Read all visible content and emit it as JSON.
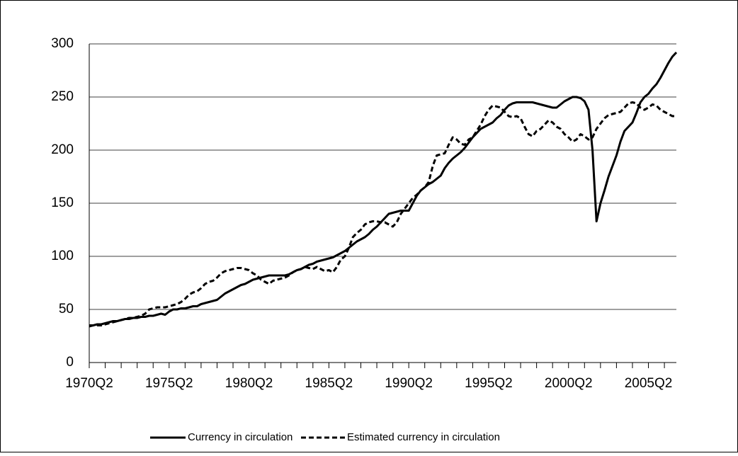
{
  "chart_data": {
    "type": "line",
    "categories": [
      "1970Q2",
      null,
      null,
      null,
      null,
      null,
      null,
      null,
      null,
      null,
      null,
      null,
      null,
      null,
      null,
      null,
      null,
      null,
      null,
      null,
      "1975Q2",
      null,
      null,
      null,
      null,
      null,
      null,
      null,
      null,
      null,
      null,
      null,
      null,
      null,
      null,
      null,
      null,
      null,
      null,
      null,
      "1980Q2",
      null,
      null,
      null,
      null,
      null,
      null,
      null,
      null,
      null,
      null,
      null,
      null,
      null,
      null,
      null,
      null,
      null,
      null,
      null,
      "1985Q2",
      null,
      null,
      null,
      null,
      null,
      null,
      null,
      null,
      null,
      null,
      null,
      null,
      null,
      null,
      null,
      null,
      null,
      null,
      null,
      "1990Q2",
      null,
      null,
      null,
      null,
      null,
      null,
      null,
      null,
      null,
      null,
      null,
      null,
      null,
      null,
      null,
      null,
      null,
      null,
      null,
      "1995Q2",
      null,
      null,
      null,
      null,
      null,
      null,
      null,
      null,
      null,
      null,
      null,
      null,
      null,
      null,
      null,
      null,
      null,
      null,
      null,
      "2000Q2",
      null,
      null,
      null,
      null,
      null,
      null,
      null,
      null,
      null,
      null,
      null,
      null,
      null,
      null,
      null,
      null,
      null,
      null,
      null,
      "2005Q2",
      null,
      null,
      null,
      null,
      null,
      null,
      null
    ],
    "series": [
      {
        "name": "Currency in circulation",
        "color": "#000000",
        "dash": "solid",
        "values": [
          35,
          35,
          36,
          36,
          37,
          38,
          39,
          39,
          40,
          41,
          41,
          42,
          42,
          43,
          43,
          44,
          44,
          45,
          46,
          45,
          48,
          50,
          50,
          51,
          51,
          52,
          53,
          53,
          55,
          56,
          57,
          58,
          59,
          62,
          65,
          67,
          69,
          71,
          73,
          74,
          76,
          78,
          79,
          80,
          81,
          82,
          82,
          82,
          82,
          82,
          83,
          85,
          87,
          88,
          90,
          92,
          93,
          95,
          96,
          97,
          98,
          99,
          101,
          103,
          105,
          108,
          111,
          114,
          116,
          118,
          121,
          125,
          128,
          132,
          136,
          140,
          141,
          142,
          143,
          143,
          143,
          150,
          157,
          162,
          165,
          168,
          170,
          173,
          176,
          183,
          188,
          192,
          195,
          198,
          202,
          207,
          212,
          216,
          220,
          222,
          224,
          226,
          230,
          233,
          238,
          242,
          244,
          245,
          245,
          245,
          245,
          245,
          244,
          243,
          242,
          241,
          240,
          240,
          243,
          246,
          248,
          250,
          250,
          249,
          246,
          238,
          200,
          133,
          150,
          162,
          175,
          185,
          195,
          208,
          218,
          222,
          226,
          235,
          245,
          250,
          253,
          258,
          262,
          268,
          275,
          282,
          288,
          292
        ]
      },
      {
        "name": "Estimated currency in circulation",
        "color": "#000000",
        "dash": "dashed",
        "values": [
          34,
          35,
          35,
          35,
          36,
          37,
          38,
          39,
          40,
          41,
          42,
          42,
          43,
          44,
          46,
          50,
          51,
          52,
          52,
          52,
          53,
          54,
          55,
          57,
          60,
          64,
          66,
          67,
          70,
          74,
          76,
          77,
          80,
          84,
          86,
          87,
          88,
          89,
          89,
          88,
          87,
          84,
          82,
          78,
          76,
          74,
          77,
          78,
          79,
          80,
          82,
          85,
          87,
          88,
          90,
          89,
          88,
          90,
          88,
          86,
          87,
          85,
          90,
          97,
          100,
          108,
          118,
          122,
          125,
          130,
          132,
          133,
          133,
          132,
          132,
          130,
          128,
          132,
          140,
          145,
          150,
          155,
          158,
          162,
          165,
          170,
          185,
          195,
          196,
          197,
          205,
          212,
          210,
          206,
          205,
          210,
          212,
          218,
          224,
          232,
          238,
          242,
          241,
          240,
          236,
          232,
          231,
          232,
          230,
          222,
          215,
          213,
          218,
          220,
          224,
          228,
          226,
          222,
          220,
          215,
          212,
          208,
          210,
          215,
          213,
          210,
          212,
          220,
          225,
          230,
          233,
          234,
          235,
          236,
          240,
          244,
          245,
          244,
          240,
          238,
          240,
          243,
          242,
          238,
          236,
          234,
          232,
          232
        ]
      }
    ],
    "ylim": [
      0,
      300
    ],
    "yticks": [
      0,
      50,
      100,
      150,
      200,
      250,
      300
    ],
    "grid": true,
    "legend": "bottom"
  }
}
